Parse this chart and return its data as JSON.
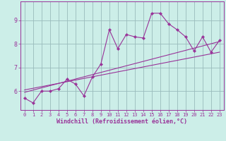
{
  "title": "",
  "xlabel": "Windchill (Refroidissement éolien,°C)",
  "ylabel": "",
  "bg_color": "#cceee8",
  "line_color": "#993399",
  "grid_color": "#99bbbb",
  "x_data": [
    0,
    1,
    2,
    3,
    4,
    5,
    6,
    7,
    8,
    9,
    10,
    11,
    12,
    13,
    14,
    15,
    16,
    17,
    18,
    19,
    20,
    21,
    22,
    23
  ],
  "y_main": [
    5.7,
    5.5,
    6.0,
    6.0,
    6.1,
    6.5,
    6.3,
    5.8,
    6.6,
    7.15,
    8.6,
    7.8,
    8.4,
    8.3,
    8.25,
    9.3,
    9.3,
    8.85,
    8.6,
    8.3,
    7.7,
    8.3,
    7.65,
    8.15
  ],
  "trend1_x": [
    0,
    23
  ],
  "trend1_y": [
    5.95,
    8.1
  ],
  "trend2_x": [
    0,
    23
  ],
  "trend2_y": [
    6.05,
    7.65
  ],
  "xlim": [
    -0.5,
    23.5
  ],
  "ylim": [
    5.2,
    9.8
  ],
  "yticks": [
    6,
    7,
    8,
    9
  ],
  "xticks": [
    0,
    1,
    2,
    3,
    4,
    5,
    6,
    7,
    8,
    9,
    10,
    11,
    12,
    13,
    14,
    15,
    16,
    17,
    18,
    19,
    20,
    21,
    22,
    23
  ],
  "tick_label_fontsize": 5.0,
  "xlabel_fontsize": 6.0,
  "marker_size": 2.2,
  "line_width": 0.8
}
